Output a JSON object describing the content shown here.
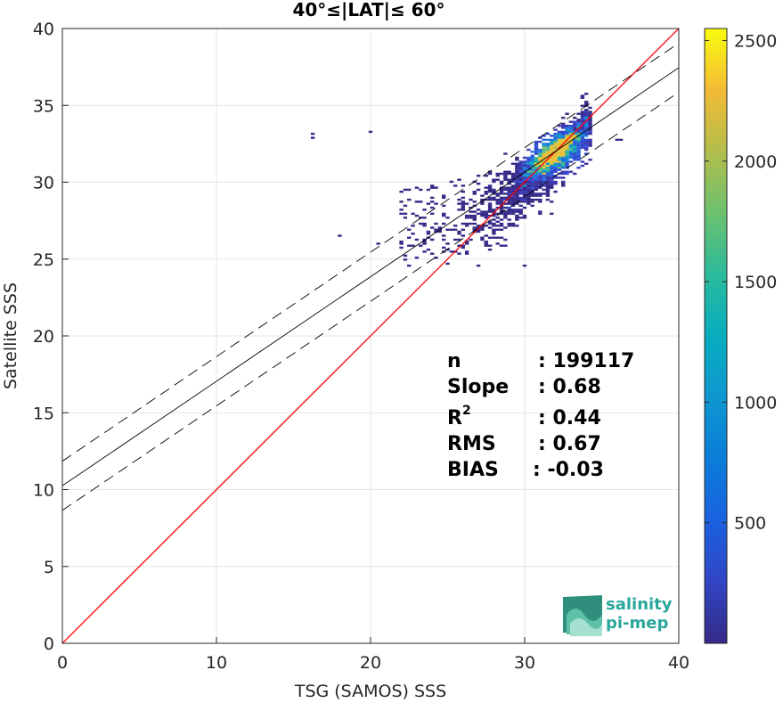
{
  "chart_data": {
    "type": "scatter",
    "title": "40°≤|LAT|≤ 60°",
    "xlabel": "TSG (SAMOS) SSS",
    "ylabel": "Satellite SSS",
    "xlim": [
      0,
      40
    ],
    "ylim": [
      0,
      40
    ],
    "xticks": [
      "0",
      "10",
      "20",
      "30",
      "40"
    ],
    "yticks": [
      "0",
      "5",
      "10",
      "15",
      "20",
      "25",
      "30",
      "35",
      "40"
    ],
    "grid": true,
    "density_colormap": "parula",
    "colorbar": {
      "range": [
        0,
        2550
      ],
      "ticks": [
        "500",
        "1000",
        "1500",
        "2000",
        "2500"
      ]
    },
    "lines": [
      {
        "kind": "identity",
        "color": "#ff0000",
        "slope": 1.0,
        "intercept": 0.0
      },
      {
        "kind": "regression",
        "color": "#000000",
        "style": "solid",
        "slope": 0.68,
        "intercept": 10.25
      },
      {
        "kind": "regression_upper",
        "color": "#000000",
        "style": "dashed",
        "slope": 0.68,
        "intercept": 11.85
      },
      {
        "kind": "regression_lower",
        "color": "#000000",
        "style": "dashed",
        "slope": 0.68,
        "intercept": 8.65
      }
    ],
    "density_cluster": {
      "center": [
        32,
        32
      ],
      "peak": 2500
    },
    "stats": [
      {
        "label": "n",
        "sep": ": ",
        "value": "199117"
      },
      {
        "label": "Slope",
        "sep": ": ",
        "value": "0.68"
      },
      {
        "label": "R",
        "sup": "2",
        "sep": ": ",
        "value": "0.44"
      },
      {
        "label": "RMS",
        "sep": ": ",
        "value": "0.67"
      },
      {
        "label": "BIAS",
        "sep": ": ",
        "value": "-0.03"
      }
    ]
  },
  "logo": {
    "line1": "salinity",
    "line2": "pi-mep"
  }
}
